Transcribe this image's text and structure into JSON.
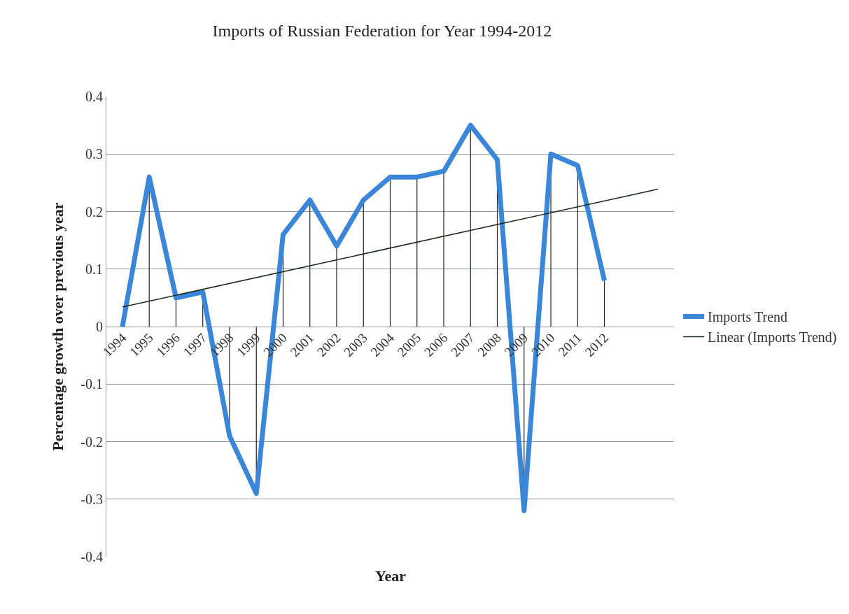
{
  "chart_data": {
    "type": "line",
    "title": "Imports of Russian Federation for Year 1994-2012",
    "xlabel": "Year",
    "ylabel": "Percentage growth over previous year",
    "x": [
      1994,
      1995,
      1996,
      1997,
      1998,
      1999,
      2000,
      2001,
      2002,
      2003,
      2004,
      2005,
      2006,
      2007,
      2008,
      2009,
      2010,
      2011,
      2012
    ],
    "xlim": [
      1993.4,
      2014.6
    ],
    "xticks": [
      1994,
      1995,
      1996,
      1997,
      1998,
      1999,
      2000,
      2001,
      2002,
      2003,
      2004,
      2005,
      2006,
      2007,
      2008,
      2009,
      2010,
      2011,
      2012
    ],
    "ylim": [
      -0.4,
      0.4
    ],
    "yticks": [
      {
        "value": -0.4,
        "label": "-0.4"
      },
      {
        "value": -0.3,
        "label": "-0.3"
      },
      {
        "value": -0.2,
        "label": "-0.2"
      },
      {
        "value": -0.1,
        "label": "-0.1"
      },
      0,
      0.1,
      0.2,
      0.3,
      0.4
    ],
    "series": [
      {
        "name": "Imports Trend",
        "color": "#3a86d8",
        "values": [
          0,
          0.26,
          0.05,
          0.06,
          -0.19,
          -0.29,
          0.16,
          0.22,
          0.14,
          0.22,
          0.26,
          0.26,
          0.27,
          0.35,
          0.29,
          -0.32,
          0.3,
          0.28,
          0.08
        ],
        "errors": [
          null,
          [
            0,
            0.26
          ],
          [
            0,
            0.05
          ],
          [
            0,
            0.06
          ],
          [
            -0.19,
            0
          ],
          [
            -0.29,
            0
          ],
          [
            0,
            0.16
          ],
          [
            0,
            0.22
          ],
          [
            0,
            0.14
          ],
          [
            0,
            0.22
          ],
          [
            0,
            0.26
          ],
          [
            0,
            0.26
          ],
          [
            0,
            0.27
          ],
          [
            0,
            0.35
          ],
          [
            0,
            0.29
          ],
          [
            -0.32,
            0
          ],
          [
            0,
            0.3
          ],
          [
            0,
            0.28
          ],
          [
            0,
            0.08
          ]
        ]
      },
      {
        "name": "Linear (Imports Trend)",
        "type": "line",
        "color": "#1a2a1a",
        "x": [
          1994,
          2014
        ],
        "values": [
          0.034,
          0.239
        ]
      }
    ],
    "grid": "y",
    "legend": "right",
    "marker": "none",
    "line_style": "solid"
  }
}
